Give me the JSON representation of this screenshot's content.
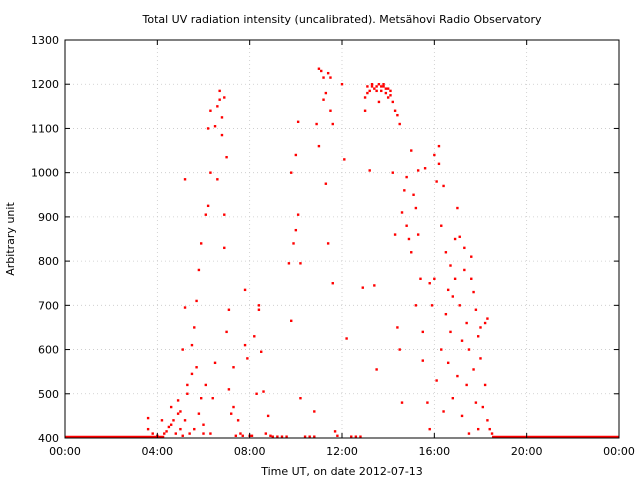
{
  "chart_data": {
    "type": "scatter",
    "title": "Total UV radiation intensity (uncalibrated). Metsähovi Radio Observatory",
    "xlabel": "Time UT, on date 2012-07-13",
    "ylabel": "Arbitrary unit",
    "xlim": [
      0,
      24
    ],
    "ylim": [
      400,
      1300
    ],
    "x_ticks": [
      {
        "value": 0,
        "label": "00:00"
      },
      {
        "value": 4,
        "label": "04:00"
      },
      {
        "value": 8,
        "label": "08:00"
      },
      {
        "value": 12,
        "label": "12:00"
      },
      {
        "value": 16,
        "label": "16:00"
      },
      {
        "value": 20,
        "label": "20:00"
      },
      {
        "value": 24,
        "label": "00:00"
      }
    ],
    "y_ticks": [
      {
        "value": 400,
        "label": "400"
      },
      {
        "value": 500,
        "label": "500"
      },
      {
        "value": 600,
        "label": "600"
      },
      {
        "value": 700,
        "label": "700"
      },
      {
        "value": 800,
        "label": "800"
      },
      {
        "value": 900,
        "label": "900"
      },
      {
        "value": 1000,
        "label": "1000"
      },
      {
        "value": 1100,
        "label": "1100"
      },
      {
        "value": 1200,
        "label": "1200"
      },
      {
        "value": 1300,
        "label": "1300"
      }
    ],
    "grid": true,
    "marker_color": "#ff0000",
    "baseline": {
      "value": 400,
      "x_ranges": [
        [
          0,
          4.3
        ],
        [
          18.5,
          24
        ]
      ]
    },
    "points": [
      [
        3.6,
        420
      ],
      [
        3.6,
        445
      ],
      [
        3.8,
        410
      ],
      [
        4.0,
        405
      ],
      [
        4.2,
        440
      ],
      [
        4.3,
        410
      ],
      [
        4.4,
        415
      ],
      [
        4.5,
        425
      ],
      [
        4.6,
        430
      ],
      [
        4.6,
        470
      ],
      [
        4.7,
        440
      ],
      [
        4.8,
        410
      ],
      [
        4.9,
        455
      ],
      [
        4.9,
        485
      ],
      [
        5.0,
        420
      ],
      [
        5.0,
        460
      ],
      [
        5.1,
        405
      ],
      [
        5.1,
        600
      ],
      [
        5.2,
        440
      ],
      [
        5.2,
        695
      ],
      [
        5.2,
        985
      ],
      [
        5.3,
        500
      ],
      [
        5.3,
        520
      ],
      [
        5.4,
        410
      ],
      [
        5.5,
        545
      ],
      [
        5.5,
        610
      ],
      [
        5.6,
        650
      ],
      [
        5.6,
        420
      ],
      [
        5.7,
        710
      ],
      [
        5.7,
        560
      ],
      [
        5.8,
        780
      ],
      [
        5.8,
        455
      ],
      [
        5.9,
        840
      ],
      [
        5.9,
        490
      ],
      [
        6.0,
        410
      ],
      [
        6.0,
        430
      ],
      [
        6.1,
        520
      ],
      [
        6.1,
        905
      ],
      [
        6.2,
        925
      ],
      [
        6.2,
        1100
      ],
      [
        6.3,
        1140
      ],
      [
        6.3,
        1000
      ],
      [
        6.3,
        410
      ],
      [
        6.4,
        490
      ],
      [
        6.5,
        570
      ],
      [
        6.5,
        1105
      ],
      [
        6.6,
        985
      ],
      [
        6.6,
        1150
      ],
      [
        6.7,
        1165
      ],
      [
        6.7,
        1185
      ],
      [
        6.8,
        1085
      ],
      [
        6.8,
        1125
      ],
      [
        6.9,
        1170
      ],
      [
        6.9,
        905
      ],
      [
        6.9,
        830
      ],
      [
        7.0,
        1035
      ],
      [
        7.0,
        640
      ],
      [
        7.1,
        690
      ],
      [
        7.1,
        510
      ],
      [
        7.2,
        455
      ],
      [
        7.3,
        560
      ],
      [
        7.3,
        470
      ],
      [
        7.4,
        405
      ],
      [
        7.5,
        440
      ],
      [
        7.6,
        410
      ],
      [
        7.7,
        405
      ],
      [
        7.8,
        735
      ],
      [
        7.8,
        610
      ],
      [
        7.9,
        580
      ],
      [
        8.0,
        405
      ],
      [
        8.1,
        405
      ],
      [
        8.2,
        630
      ],
      [
        8.3,
        500
      ],
      [
        8.4,
        690
      ],
      [
        8.4,
        700
      ],
      [
        8.5,
        595
      ],
      [
        8.6,
        505
      ],
      [
        8.7,
        410
      ],
      [
        8.8,
        450
      ],
      [
        8.9,
        405
      ],
      [
        9.0,
        403
      ],
      [
        9.2,
        403
      ],
      [
        9.4,
        403
      ],
      [
        9.6,
        403
      ],
      [
        9.7,
        795
      ],
      [
        9.8,
        665
      ],
      [
        9.8,
        1000
      ],
      [
        9.9,
        840
      ],
      [
        10.0,
        870
      ],
      [
        10.0,
        1040
      ],
      [
        10.1,
        1115
      ],
      [
        10.1,
        905
      ],
      [
        10.2,
        795
      ],
      [
        10.2,
        490
      ],
      [
        10.4,
        403
      ],
      [
        10.6,
        403
      ],
      [
        10.8,
        403
      ],
      [
        10.8,
        460
      ],
      [
        10.9,
        1110
      ],
      [
        11.0,
        1235
      ],
      [
        11.0,
        1060
      ],
      [
        11.1,
        1230
      ],
      [
        11.2,
        1215
      ],
      [
        11.2,
        1165
      ],
      [
        11.3,
        1180
      ],
      [
        11.3,
        975
      ],
      [
        11.4,
        840
      ],
      [
        11.4,
        1225
      ],
      [
        11.5,
        1215
      ],
      [
        11.5,
        1140
      ],
      [
        11.6,
        1110
      ],
      [
        11.6,
        750
      ],
      [
        11.7,
        415
      ],
      [
        11.8,
        405
      ],
      [
        12.0,
        1200
      ],
      [
        12.1,
        1030
      ],
      [
        12.2,
        625
      ],
      [
        12.4,
        403
      ],
      [
        12.6,
        403
      ],
      [
        12.8,
        403
      ],
      [
        12.9,
        740
      ],
      [
        13.0,
        1170
      ],
      [
        13.0,
        1140
      ],
      [
        13.1,
        1180
      ],
      [
        13.1,
        1195
      ],
      [
        13.2,
        1185
      ],
      [
        13.2,
        1005
      ],
      [
        13.3,
        1195
      ],
      [
        13.3,
        1200
      ],
      [
        13.4,
        1190
      ],
      [
        13.4,
        745
      ],
      [
        13.5,
        1195
      ],
      [
        13.5,
        1185
      ],
      [
        13.5,
        555
      ],
      [
        13.6,
        1200
      ],
      [
        13.6,
        1160
      ],
      [
        13.7,
        1195
      ],
      [
        13.7,
        1185
      ],
      [
        13.8,
        1200
      ],
      [
        13.8,
        1195
      ],
      [
        13.9,
        1190
      ],
      [
        13.9,
        1180
      ],
      [
        14.0,
        1190
      ],
      [
        14.0,
        1170
      ],
      [
        14.1,
        1185
      ],
      [
        14.1,
        1175
      ],
      [
        14.2,
        1160
      ],
      [
        14.2,
        1000
      ],
      [
        14.3,
        1140
      ],
      [
        14.3,
        860
      ],
      [
        14.4,
        1130
      ],
      [
        14.4,
        650
      ],
      [
        14.5,
        1110
      ],
      [
        14.5,
        600
      ],
      [
        14.6,
        910
      ],
      [
        14.6,
        480
      ],
      [
        14.7,
        960
      ],
      [
        14.8,
        990
      ],
      [
        14.8,
        880
      ],
      [
        14.9,
        850
      ],
      [
        15.0,
        820
      ],
      [
        15.0,
        1050
      ],
      [
        15.1,
        950
      ],
      [
        15.2,
        920
      ],
      [
        15.2,
        700
      ],
      [
        15.3,
        860
      ],
      [
        15.3,
        1005
      ],
      [
        15.4,
        760
      ],
      [
        15.5,
        640
      ],
      [
        15.5,
        575
      ],
      [
        15.6,
        1010
      ],
      [
        15.7,
        480
      ],
      [
        15.8,
        420
      ],
      [
        15.8,
        750
      ],
      [
        15.9,
        700
      ],
      [
        16.0,
        760
      ],
      [
        16.0,
        1040
      ],
      [
        16.1,
        980
      ],
      [
        16.1,
        530
      ],
      [
        16.2,
        1020
      ],
      [
        16.2,
        1060
      ],
      [
        16.3,
        880
      ],
      [
        16.3,
        600
      ],
      [
        16.4,
        970
      ],
      [
        16.4,
        460
      ],
      [
        16.5,
        820
      ],
      [
        16.5,
        680
      ],
      [
        16.6,
        570
      ],
      [
        16.6,
        735
      ],
      [
        16.7,
        790
      ],
      [
        16.7,
        640
      ],
      [
        16.8,
        720
      ],
      [
        16.8,
        490
      ],
      [
        16.9,
        850
      ],
      [
        16.9,
        760
      ],
      [
        17.0,
        920
      ],
      [
        17.0,
        540
      ],
      [
        17.1,
        855
      ],
      [
        17.1,
        700
      ],
      [
        17.2,
        620
      ],
      [
        17.2,
        450
      ],
      [
        17.3,
        830
      ],
      [
        17.3,
        780
      ],
      [
        17.4,
        660
      ],
      [
        17.4,
        520
      ],
      [
        17.5,
        410
      ],
      [
        17.5,
        600
      ],
      [
        17.6,
        810
      ],
      [
        17.6,
        760
      ],
      [
        17.7,
        730
      ],
      [
        17.7,
        555
      ],
      [
        17.8,
        690
      ],
      [
        17.8,
        480
      ],
      [
        17.9,
        630
      ],
      [
        17.9,
        420
      ],
      [
        18.0,
        650
      ],
      [
        18.0,
        580
      ],
      [
        18.1,
        470
      ],
      [
        18.2,
        520
      ],
      [
        18.2,
        660
      ],
      [
        18.3,
        670
      ],
      [
        18.3,
        440
      ],
      [
        18.4,
        420
      ],
      [
        18.5,
        410
      ]
    ]
  }
}
